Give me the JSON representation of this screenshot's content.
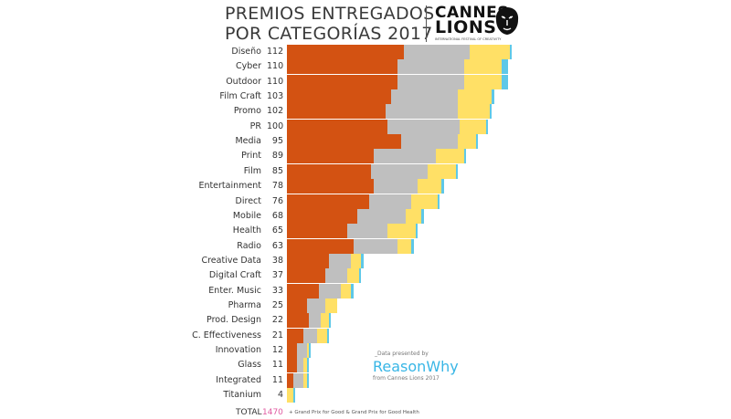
{
  "header": {
    "title_line1": "PREMIOS ENTREGADOS",
    "title_line2": "POR CATEGORÍAS 2017",
    "logo_line1": "CANNES",
    "logo_line2": "LIONS",
    "logo_tagline": "INTERNATIONAL FESTIVAL OF CREATIVITY"
  },
  "credit": {
    "presented_by": "_Data presented by",
    "brand_part1": "Reason",
    "brand_part2": "Why",
    "source": "from Cannes Lions 2017"
  },
  "total": {
    "label": "TOTAL",
    "value": "1470"
  },
  "footnote": "+ Grand Prix for Good & Grand Prix for Good Health",
  "colors": {
    "bronze": "#d35212",
    "silver": "#bfbfbf",
    "gold": "#ffe066",
    "grand_prix": "#5ec8e8"
  },
  "chart_data": {
    "type": "bar",
    "orientation": "horizontal",
    "stacked": true,
    "categories": [
      "Diseño",
      "Cyber",
      "Outdoor",
      "Film Craft",
      "Promo",
      "PR",
      "Media",
      "Print",
      "Film",
      "Entertainment",
      "Direct",
      "Mobile",
      "Health",
      "Radio",
      "Creative Data",
      "Digital Craft",
      "Enter. Music",
      "Pharma",
      "Prod. Design",
      "C. Effectiveness",
      "Innovation",
      "Glass",
      "Integrated",
      "Titanium"
    ],
    "totals": [
      112,
      110,
      110,
      103,
      102,
      100,
      95,
      89,
      85,
      78,
      76,
      68,
      65,
      63,
      38,
      37,
      33,
      25,
      22,
      21,
      12,
      11,
      11,
      4
    ],
    "series": [
      {
        "values": [
          58,
          55,
          55,
          52,
          49,
          50,
          57,
          43,
          42,
          43,
          41,
          35,
          30,
          33,
          21,
          19,
          16,
          10,
          11,
          8,
          5,
          5,
          3,
          0
        ]
      },
      {
        "values": [
          33,
          33,
          33,
          33,
          36,
          36,
          28,
          31,
          28,
          22,
          21,
          24,
          20,
          22,
          11,
          11,
          11,
          9,
          6,
          7,
          5,
          3,
          5,
          0
        ]
      },
      {
        "values": [
          20,
          19,
          19,
          17,
          16,
          13,
          9,
          14,
          14,
          12,
          13,
          8,
          14,
          7,
          5,
          6,
          5,
          6,
          4,
          5,
          1,
          2,
          2,
          3
        ]
      },
      {
        "values": [
          1,
          3,
          3,
          1,
          1,
          1,
          1,
          1,
          1,
          1,
          1,
          1,
          1,
          1,
          1,
          1,
          1,
          0,
          1,
          1,
          1,
          1,
          1,
          1
        ]
      }
    ]
  }
}
